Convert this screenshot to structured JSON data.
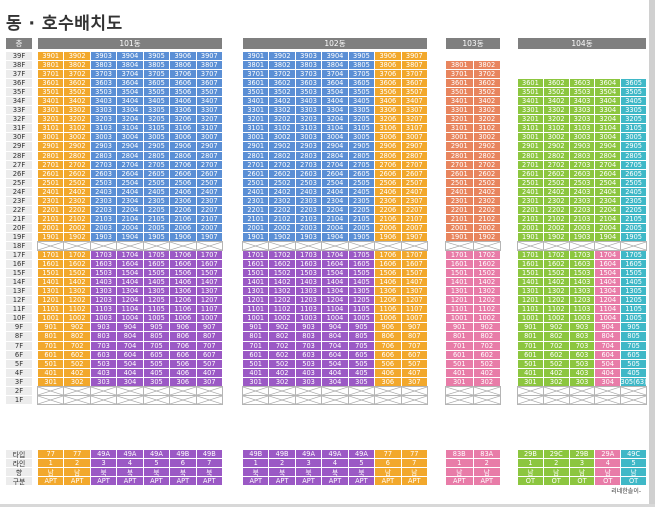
{
  "title": "동 · 호수배치도",
  "floor_header": "층",
  "floor_label_color": "#ececec",
  "header_color": "#7f7f7f",
  "legend_labels": [
    "타입",
    "라인",
    "향",
    "구분"
  ],
  "watermark": "리네한솔이-",
  "buildings": [
    {
      "name": "101동",
      "lines": [
        "01",
        "02",
        "03",
        "04",
        "05",
        "06",
        "07"
      ],
      "colors": [
        "#f2a82c",
        "#f2a82c",
        "#5b8fd5",
        "#5b8fd5",
        "#5b8fd5",
        "#5b8fd5",
        "#5b8fd5"
      ],
      "low_colors": [
        "#f2a82c",
        "#f2a82c",
        "#9b59c5",
        "#9b59c5",
        "#9b59c5",
        "#9b59c5",
        "#9b59c5"
      ],
      "max_floor": 39,
      "types": [
        "77",
        "77",
        "49A",
        "49A",
        "49A",
        "49B",
        "49B"
      ],
      "line_nums": [
        "1",
        "2",
        "3",
        "4",
        "5",
        "6",
        "7"
      ],
      "dirs": [
        "남",
        "남",
        "북",
        "북",
        "북",
        "북",
        "북"
      ],
      "kinds": [
        "APT",
        "APT",
        "APT",
        "APT",
        "APT",
        "APT",
        "APT"
      ]
    },
    {
      "name": "102동",
      "lines": [
        "01",
        "02",
        "03",
        "04",
        "05",
        "06",
        "07"
      ],
      "colors": [
        "#5b8fd5",
        "#5b8fd5",
        "#5b8fd5",
        "#5b8fd5",
        "#5b8fd5",
        "#f2a82c",
        "#f2a82c"
      ],
      "low_colors": [
        "#9b59c5",
        "#9b59c5",
        "#9b59c5",
        "#9b59c5",
        "#9b59c5",
        "#f2a82c",
        "#f2a82c"
      ],
      "max_floor": 39,
      "types": [
        "49B",
        "49B",
        "49A",
        "49A",
        "49A",
        "77",
        "77"
      ],
      "line_nums": [
        "1",
        "2",
        "3",
        "4",
        "5",
        "6",
        "7"
      ],
      "dirs": [
        "북",
        "북",
        "북",
        "북",
        "북",
        "남",
        "남"
      ],
      "kinds": [
        "APT",
        "APT",
        "APT",
        "APT",
        "APT",
        "APT",
        "APT"
      ]
    },
    {
      "name": "103동",
      "lines": [
        "01",
        "02"
      ],
      "colors": [
        "#e8855e",
        "#e8855e"
      ],
      "low_colors": [
        "#e87ca8",
        "#e87ca8"
      ],
      "max_floor": 38,
      "types": [
        "83B",
        "83A"
      ],
      "line_nums": [
        "1",
        "2"
      ],
      "dirs": [
        "남",
        "남"
      ],
      "kinds": [
        "APT",
        "APT"
      ]
    },
    {
      "name": "104동",
      "lines": [
        "01",
        "02",
        "03",
        "04",
        "05"
      ],
      "colors": [
        "#8cc63f",
        "#8cc63f",
        "#8cc63f",
        "#8cc63f",
        "#3fb8c7"
      ],
      "low_colors": [
        "#8cc63f",
        "#8cc63f",
        "#8cc63f",
        "#e87ca8",
        "#3fb8c7"
      ],
      "max_floor": 36,
      "types": [
        "29B",
        "29C",
        "29B",
        "29A",
        "49C"
      ],
      "line_nums": [
        "1",
        "2",
        "3",
        "4",
        "5"
      ],
      "dirs": [
        "남",
        "남",
        "남",
        "남",
        "남"
      ],
      "kinds": [
        "OT",
        "OT",
        "OT",
        "OT",
        "OT"
      ],
      "special": {
        "301-5": "305(63)"
      }
    }
  ],
  "floors": [
    "39F",
    "38F",
    "37F",
    "36F",
    "35F",
    "34F",
    "33F",
    "32F",
    "31F",
    "30F",
    "29F",
    "28F",
    "27F",
    "26F",
    "25F",
    "24F",
    "23F",
    "22F",
    "21F",
    "20F",
    "19F",
    "18F",
    "17F",
    "16F",
    "15F",
    "14F",
    "13F",
    "12F",
    "11F",
    "10F",
    "9F",
    "8F",
    "7F",
    "6F",
    "5F",
    "4F",
    "3F",
    "2F",
    "1F"
  ]
}
